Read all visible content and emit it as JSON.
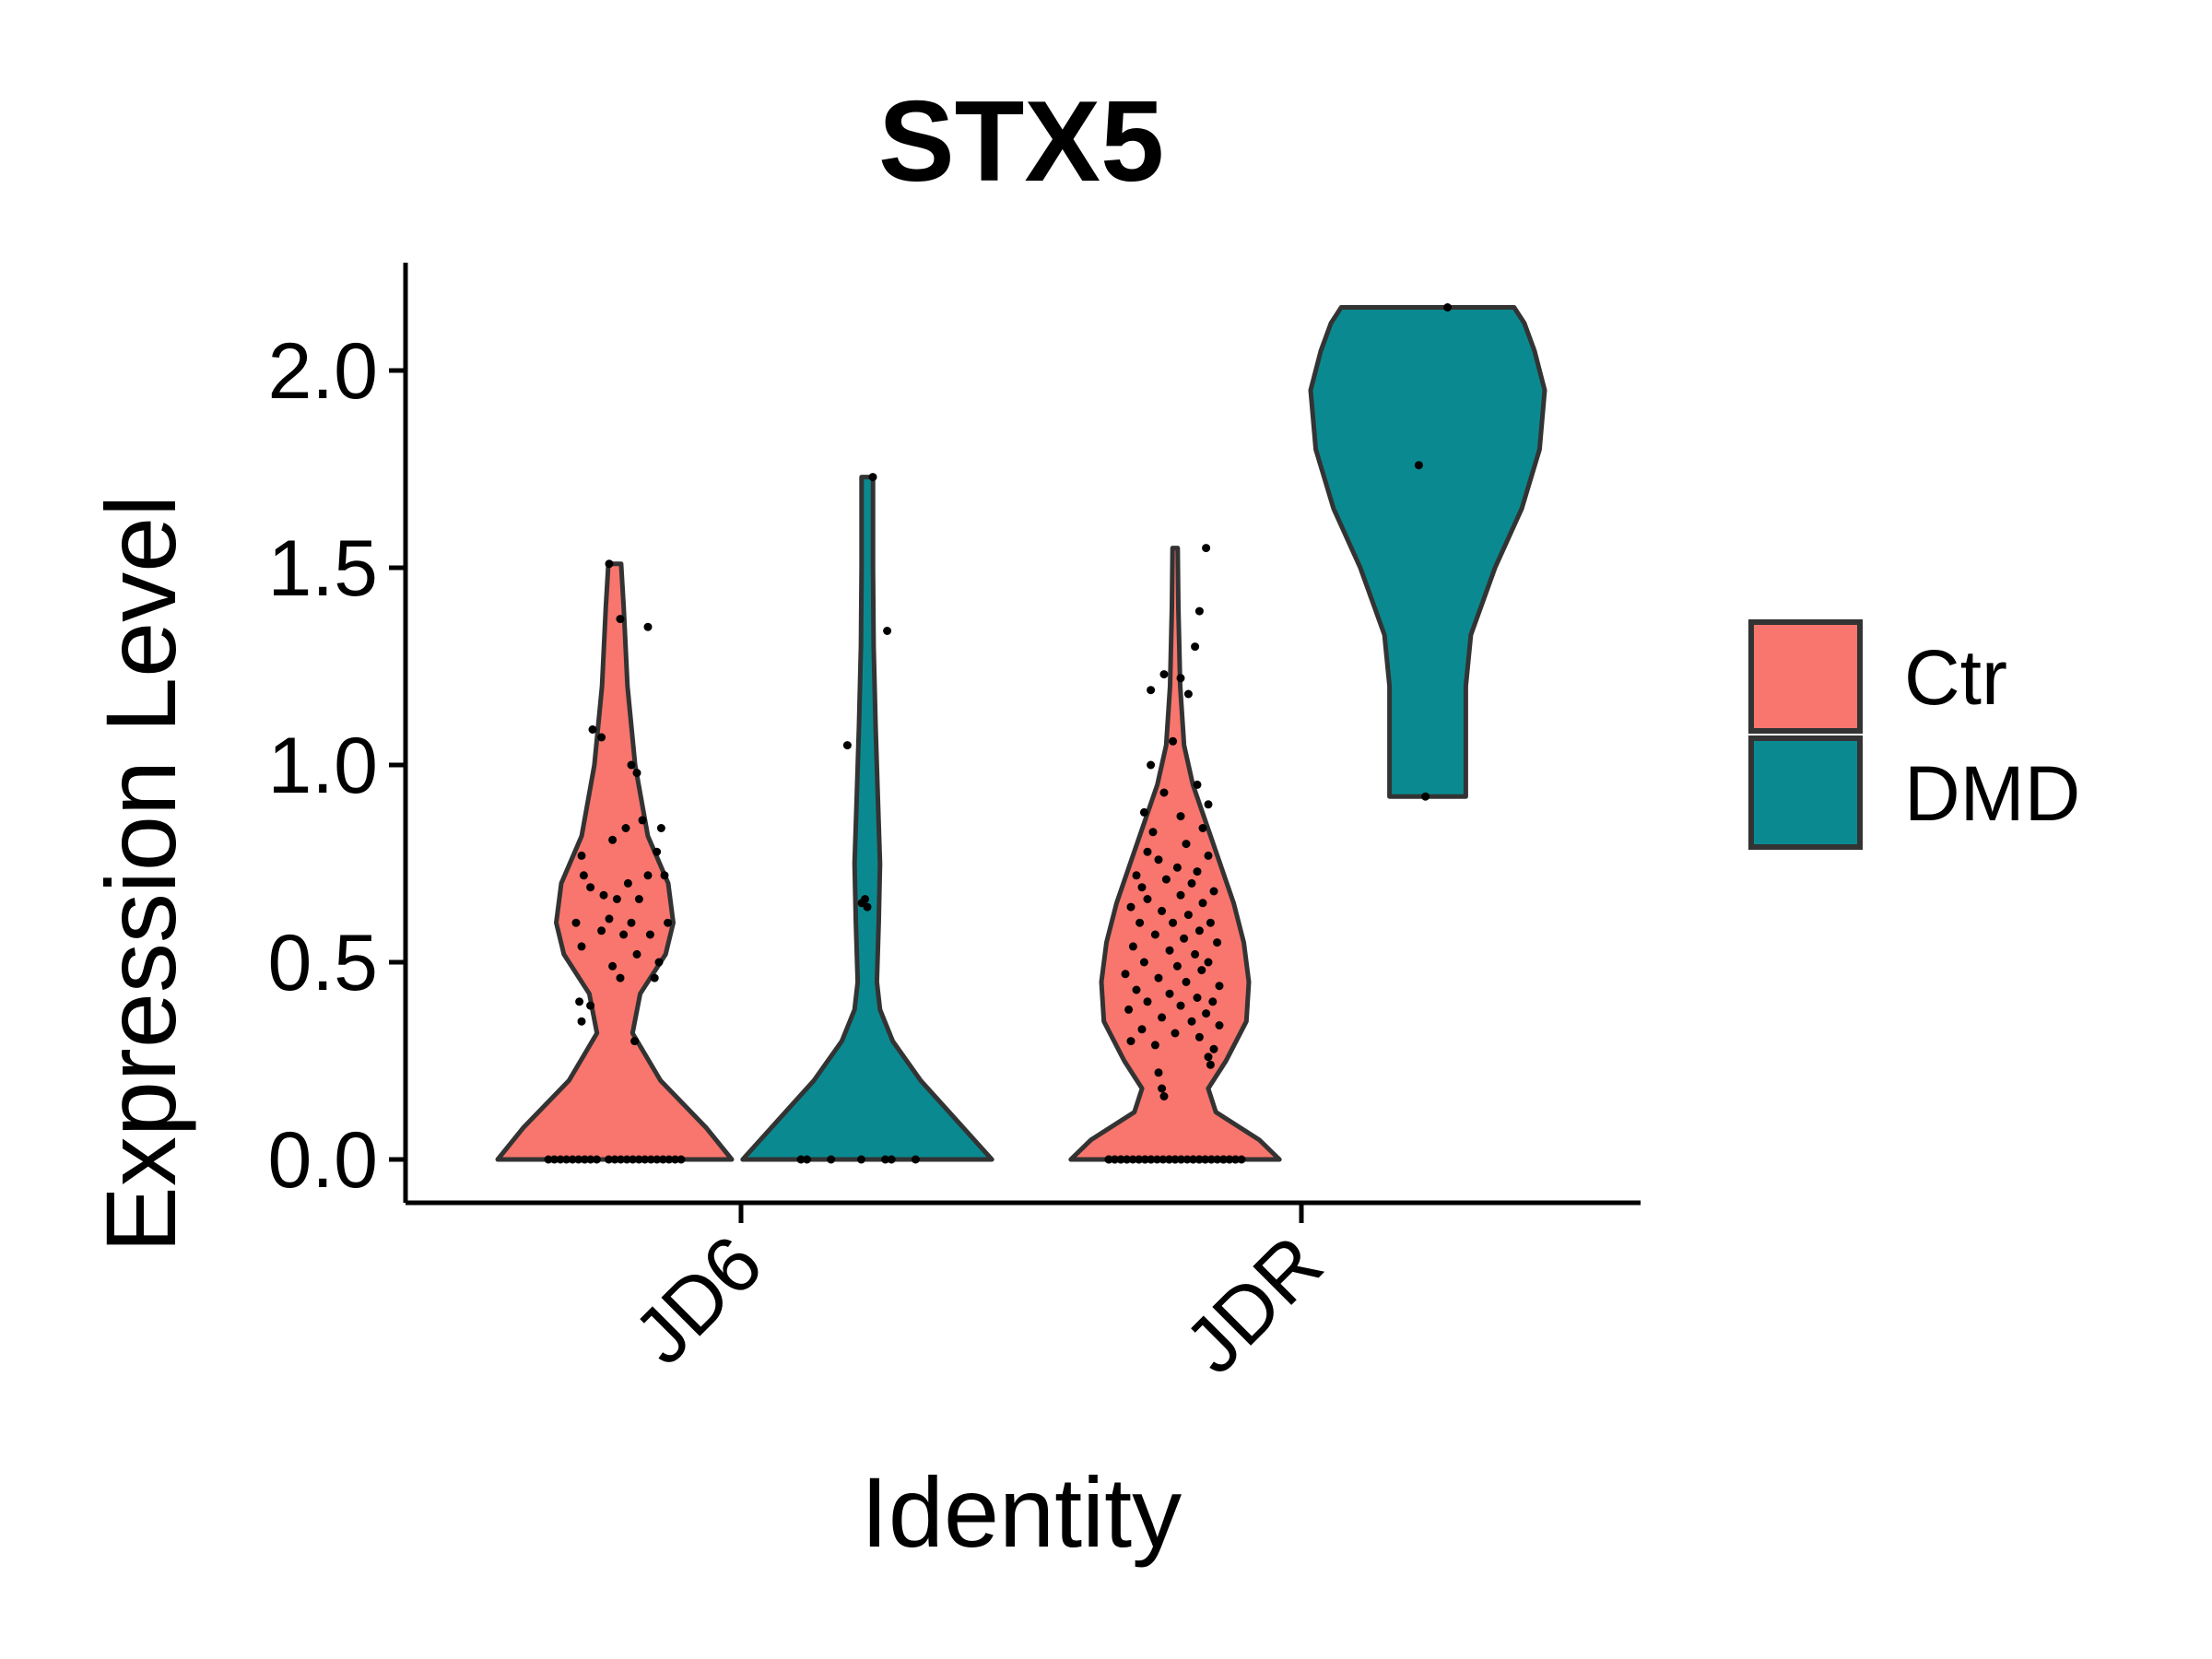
{
  "chart_data": {
    "type": "violin",
    "title": "STX5",
    "xlabel": "Identity",
    "ylabel": "Expression Level",
    "categories": [
      "JD6",
      "JDR"
    ],
    "ylim": [
      -0.1,
      2.26
    ],
    "yticks": [
      0.0,
      0.5,
      1.0,
      1.5,
      2.0
    ],
    "ytick_labels": [
      "0.0",
      "0.5",
      "1.0",
      "1.5",
      "2.0"
    ],
    "legend_position": "right",
    "series": [
      {
        "name": "Ctr",
        "color": "#F8766D",
        "groups": [
          {
            "category": "JD6",
            "max": 1.51,
            "density": [
              [
                0.0,
                0.92
              ],
              [
                0.08,
                0.72
              ],
              [
                0.2,
                0.36
              ],
              [
                0.32,
                0.14
              ],
              [
                0.42,
                0.2
              ],
              [
                0.52,
                0.4
              ],
              [
                0.6,
                0.46
              ],
              [
                0.7,
                0.42
              ],
              [
                0.82,
                0.26
              ],
              [
                1.0,
                0.16
              ],
              [
                1.2,
                0.1
              ],
              [
                1.4,
                0.07
              ],
              [
                1.51,
                0.05
              ]
            ],
            "zero_points": 22,
            "points": [
              [
                -0.05,
                1.51
              ],
              [
                0.05,
                1.37
              ],
              [
                0.3,
                1.35
              ],
              [
                -0.2,
                1.09
              ],
              [
                -0.12,
                1.07
              ],
              [
                0.15,
                1.0
              ],
              [
                0.2,
                0.98
              ],
              [
                -0.3,
                0.77
              ],
              [
                -0.02,
                0.81
              ],
              [
                0.1,
                0.84
              ],
              [
                0.25,
                0.86
              ],
              [
                0.42,
                0.84
              ],
              [
                0.38,
                0.78
              ],
              [
                -0.28,
                0.72
              ],
              [
                0.12,
                0.7
              ],
              [
                -0.22,
                0.69
              ],
              [
                0.3,
                0.72
              ],
              [
                -0.1,
                0.67
              ],
              [
                0.02,
                0.66
              ],
              [
                0.22,
                0.66
              ],
              [
                0.45,
                0.72
              ],
              [
                -0.35,
                0.6
              ],
              [
                -0.05,
                0.61
              ],
              [
                0.15,
                0.6
              ],
              [
                0.48,
                0.6
              ],
              [
                -0.12,
                0.58
              ],
              [
                0.08,
                0.57
              ],
              [
                0.32,
                0.57
              ],
              [
                -0.3,
                0.54
              ],
              [
                0.2,
                0.52
              ],
              [
                0.4,
                0.5
              ],
              [
                -0.02,
                0.49
              ],
              [
                0.05,
                0.46
              ],
              [
                0.36,
                0.46
              ],
              [
                -0.32,
                0.4
              ],
              [
                -0.22,
                0.39
              ],
              [
                -0.3,
                0.35
              ],
              [
                0.18,
                0.3
              ]
            ]
          },
          {
            "category": "JDR",
            "max": 1.55,
            "density": [
              [
                0.0,
                0.82
              ],
              [
                0.05,
                0.66
              ],
              [
                0.12,
                0.32
              ],
              [
                0.18,
                0.26
              ],
              [
                0.25,
                0.4
              ],
              [
                0.35,
                0.56
              ],
              [
                0.45,
                0.58
              ],
              [
                0.55,
                0.54
              ],
              [
                0.65,
                0.46
              ],
              [
                0.8,
                0.3
              ],
              [
                0.95,
                0.14
              ],
              [
                1.05,
                0.07
              ],
              [
                1.2,
                0.04
              ],
              [
                1.4,
                0.025
              ],
              [
                1.55,
                0.02
              ]
            ],
            "zero_points": 40,
            "points": [
              [
                0.28,
                1.55
              ],
              [
                -0.1,
                1.23
              ],
              [
                0.22,
                1.39
              ],
              [
                0.18,
                1.3
              ],
              [
                -0.22,
                1.19
              ],
              [
                0.05,
                1.22
              ],
              [
                0.12,
                1.18
              ],
              [
                -0.02,
                1.06
              ],
              [
                -0.22,
                1.0
              ],
              [
                0.2,
                0.95
              ],
              [
                -0.1,
                0.93
              ],
              [
                -0.28,
                0.88
              ],
              [
                0.3,
                0.9
              ],
              [
                0.05,
                0.87
              ],
              [
                -0.2,
                0.83
              ],
              [
                0.25,
                0.84
              ],
              [
                -0.25,
                0.78
              ],
              [
                0.1,
                0.8
              ],
              [
                0.3,
                0.77
              ],
              [
                -0.15,
                0.76
              ],
              [
                -0.35,
                0.72
              ],
              [
                0.02,
                0.74
              ],
              [
                0.2,
                0.73
              ],
              [
                -0.3,
                0.69
              ],
              [
                -0.08,
                0.71
              ],
              [
                0.15,
                0.7
              ],
              [
                0.35,
                0.68
              ],
              [
                -0.25,
                0.66
              ],
              [
                0.05,
                0.67
              ],
              [
                0.25,
                0.65
              ],
              [
                -0.4,
                0.64
              ],
              [
                -0.12,
                0.63
              ],
              [
                0.12,
                0.62
              ],
              [
                0.32,
                0.6
              ],
              [
                -0.32,
                0.6
              ],
              [
                -0.02,
                0.6
              ],
              [
                0.22,
                0.58
              ],
              [
                -0.18,
                0.57
              ],
              [
                0.08,
                0.56
              ],
              [
                0.38,
                0.55
              ],
              [
                -0.38,
                0.54
              ],
              [
                -0.05,
                0.53
              ],
              [
                0.18,
                0.52
              ],
              [
                0.3,
                0.5
              ],
              [
                -0.28,
                0.5
              ],
              [
                0.02,
                0.49
              ],
              [
                0.24,
                0.48
              ],
              [
                -0.45,
                0.47
              ],
              [
                -0.15,
                0.46
              ],
              [
                0.1,
                0.45
              ],
              [
                0.4,
                0.44
              ],
              [
                -0.35,
                0.43
              ],
              [
                -0.05,
                0.42
              ],
              [
                0.2,
                0.41
              ],
              [
                0.34,
                0.4
              ],
              [
                -0.25,
                0.4
              ],
              [
                0.05,
                0.39
              ],
              [
                -0.42,
                0.38
              ],
              [
                0.28,
                0.37
              ],
              [
                -0.12,
                0.36
              ],
              [
                0.15,
                0.35
              ],
              [
                0.4,
                0.34
              ],
              [
                -0.3,
                0.33
              ],
              [
                0.0,
                0.32
              ],
              [
                0.22,
                0.31
              ],
              [
                -0.4,
                0.3
              ],
              [
                -0.18,
                0.29
              ],
              [
                0.35,
                0.28
              ],
              [
                0.3,
                0.26
              ],
              [
                -0.15,
                0.22
              ],
              [
                -0.12,
                0.18
              ],
              [
                0.32,
                0.24
              ],
              [
                -0.1,
                0.16
              ]
            ]
          }
        ]
      },
      {
        "name": "DMD",
        "color": "#0A8A90",
        "groups": [
          {
            "category": "JD6",
            "max": 1.73,
            "density": [
              [
                0.0,
                0.98
              ],
              [
                0.1,
                0.7
              ],
              [
                0.2,
                0.42
              ],
              [
                0.3,
                0.2
              ],
              [
                0.38,
                0.1
              ],
              [
                0.45,
                0.075
              ],
              [
                0.6,
                0.09
              ],
              [
                0.75,
                0.1
              ],
              [
                0.9,
                0.085
              ],
              [
                1.1,
                0.065
              ],
              [
                1.3,
                0.05
              ],
              [
                1.5,
                0.045
              ],
              [
                1.73,
                0.045
              ]
            ],
            "zero_points": 7,
            "points": [
              [
                0.05,
                1.73
              ],
              [
                0.18,
                1.34
              ],
              [
                -0.18,
                1.05
              ],
              [
                -0.05,
                0.65
              ],
              [
                -0.02,
                0.66
              ],
              [
                0.0,
                0.64
              ]
            ]
          },
          {
            "category": "JDR",
            "max": 2.16,
            "min": 0.92,
            "density": [
              [
                0.92,
                0.3
              ],
              [
                1.05,
                0.3
              ],
              [
                1.2,
                0.3
              ],
              [
                1.33,
                0.34
              ],
              [
                1.5,
                0.53
              ],
              [
                1.65,
                0.74
              ],
              [
                1.8,
                0.88
              ],
              [
                1.95,
                0.92
              ],
              [
                2.05,
                0.84
              ],
              [
                2.12,
                0.76
              ],
              [
                2.16,
                0.68
              ]
            ],
            "zero_points": 0,
            "points": [
              [
                0.18,
                2.16
              ],
              [
                -0.08,
                1.76
              ],
              [
                -0.02,
                0.92
              ]
            ]
          }
        ]
      }
    ]
  }
}
